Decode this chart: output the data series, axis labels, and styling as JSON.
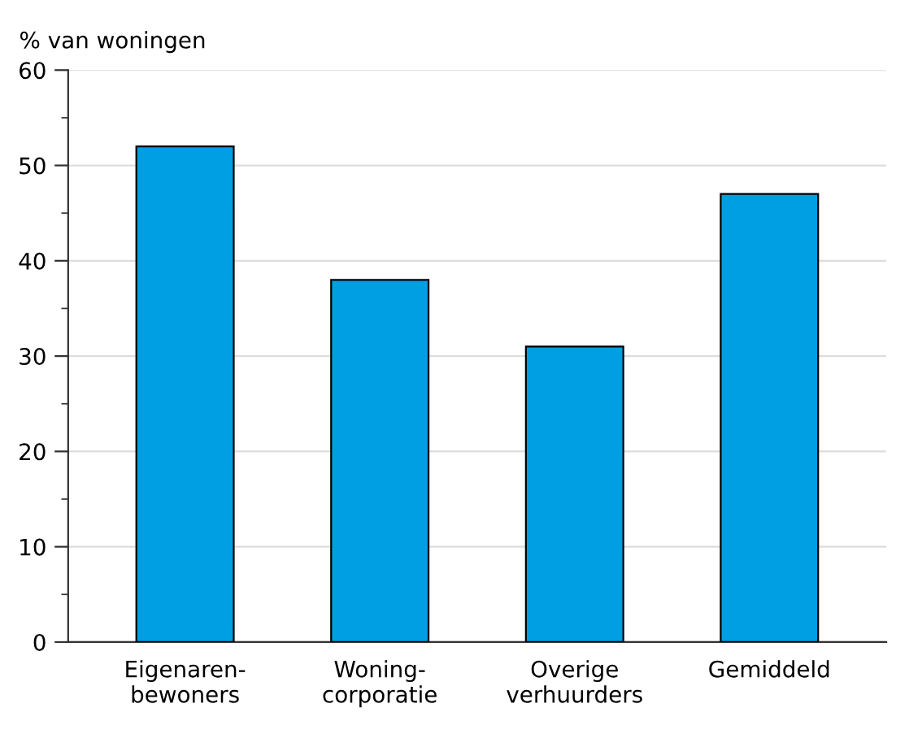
{
  "chart_data": {
    "type": "bar",
    "ylabel": "% van woningen",
    "categories": [
      "Eigenaren-\nbewoners",
      "Woning-\ncorporatie",
      "Overige\nverhuurders",
      "Gemiddeld"
    ],
    "values": [
      52,
      38,
      31,
      47
    ],
    "color": "#009fe3",
    "ylim": [
      0,
      60
    ],
    "yticks": [
      0,
      10,
      20,
      30,
      40,
      50,
      60
    ],
    "grid": "y"
  }
}
